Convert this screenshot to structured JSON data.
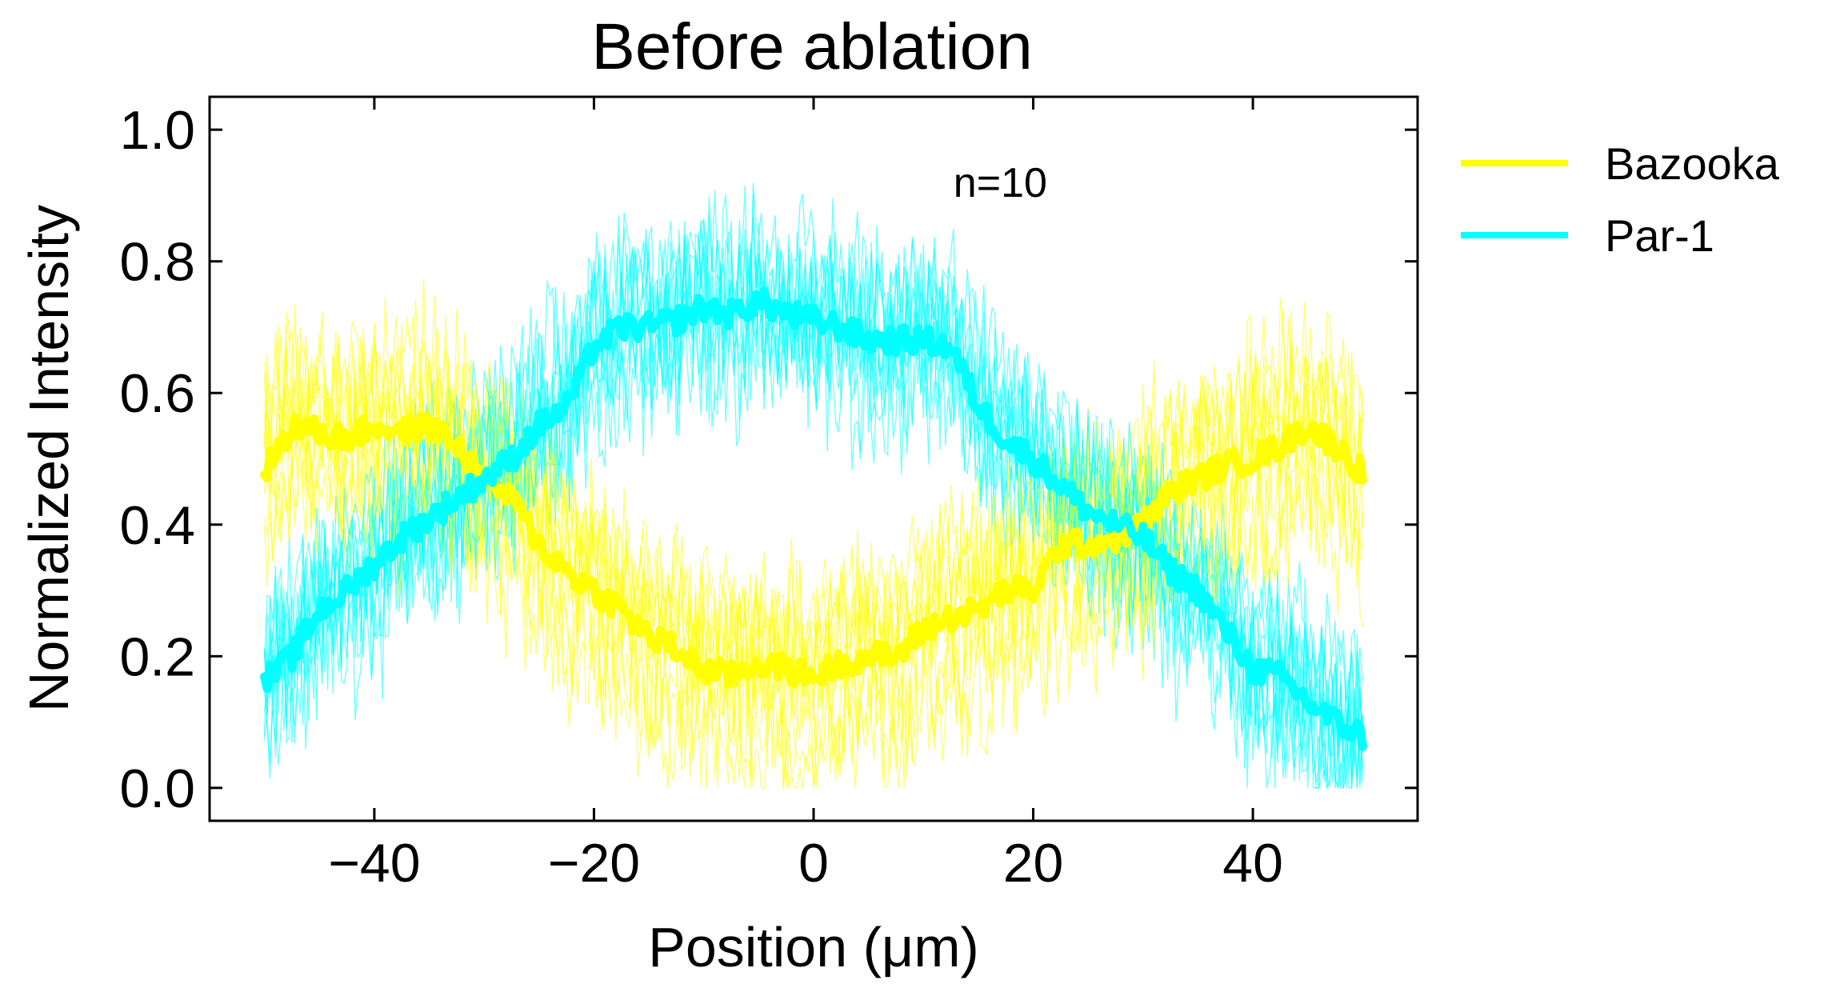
{
  "chart_data": {
    "type": "line",
    "title": "Before ablation",
    "xlabel": "Position (μm)",
    "ylabel": "Normalized Intensity",
    "xlim": [
      -55,
      55
    ],
    "ylim": [
      -0.05,
      1.05
    ],
    "x_ticks": [
      -40,
      -20,
      0,
      20,
      40
    ],
    "x_tick_labels": [
      "−40",
      "−20",
      "0",
      "20",
      "40"
    ],
    "y_ticks": [
      0.0,
      0.2,
      0.4,
      0.6,
      0.8,
      1.0
    ],
    "y_tick_labels": [
      "0.0",
      "0.2",
      "0.4",
      "0.6",
      "0.8",
      "1.0"
    ],
    "grid": false,
    "legend_position": "outside-right",
    "annotation": {
      "text": "n=10",
      "x": 17,
      "y": 0.92
    },
    "individual_traces_per_series": 10,
    "series": [
      {
        "name": "Bazooka",
        "color": "#ffff00",
        "mean": {
          "x": [
            -50,
            -47.5,
            -45,
            -42.5,
            -40,
            -37.5,
            -35,
            -32.5,
            -30,
            -27.5,
            -25,
            -22.5,
            -20,
            -17.5,
            -15,
            -12.5,
            -10,
            -7.5,
            -5,
            -2.5,
            0,
            2.5,
            5,
            7.5,
            10,
            12.5,
            15,
            17.5,
            20,
            22.5,
            25,
            27.5,
            30,
            32.5,
            35,
            37.5,
            40,
            42.5,
            45,
            47.5,
            50
          ],
          "y": [
            0.48,
            0.55,
            0.54,
            0.53,
            0.55,
            0.54,
            0.55,
            0.52,
            0.47,
            0.44,
            0.37,
            0.33,
            0.3,
            0.27,
            0.23,
            0.21,
            0.18,
            0.17,
            0.19,
            0.18,
            0.17,
            0.19,
            0.2,
            0.2,
            0.24,
            0.26,
            0.27,
            0.3,
            0.3,
            0.37,
            0.37,
            0.38,
            0.4,
            0.45,
            0.47,
            0.49,
            0.5,
            0.52,
            0.55,
            0.52,
            0.48
          ]
        }
      },
      {
        "name": "Par-1",
        "color": "#00ffff",
        "mean": {
          "x": [
            -50,
            -47.5,
            -45,
            -42.5,
            -40,
            -37.5,
            -35,
            -32.5,
            -30,
            -27.5,
            -25,
            -22.5,
            -20,
            -17.5,
            -15,
            -12.5,
            -10,
            -7.5,
            -5,
            -2.5,
            0,
            2.5,
            5,
            7.5,
            10,
            12.5,
            15,
            17.5,
            20,
            22.5,
            25,
            27.5,
            30,
            32.5,
            35,
            37.5,
            40,
            42.5,
            45,
            47.5,
            50
          ],
          "y": [
            0.16,
            0.2,
            0.27,
            0.3,
            0.34,
            0.38,
            0.41,
            0.44,
            0.47,
            0.5,
            0.55,
            0.58,
            0.67,
            0.7,
            0.7,
            0.71,
            0.73,
            0.72,
            0.74,
            0.72,
            0.71,
            0.7,
            0.68,
            0.68,
            0.68,
            0.67,
            0.58,
            0.53,
            0.5,
            0.46,
            0.42,
            0.4,
            0.38,
            0.33,
            0.3,
            0.24,
            0.18,
            0.17,
            0.13,
            0.1,
            0.08
          ]
        }
      }
    ]
  }
}
